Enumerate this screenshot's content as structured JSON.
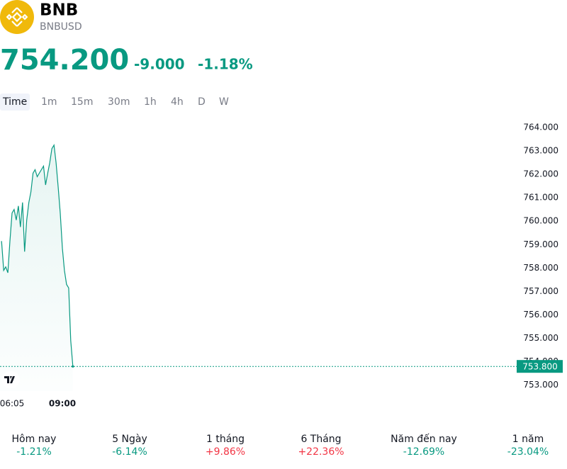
{
  "header": {
    "symbol": "BNB",
    "ticker": "BNBUSD",
    "price": "754.200",
    "change": "-9.000",
    "change_percent": "-1.18%"
  },
  "tabs": [
    "Time",
    "1m",
    "15m",
    "30m",
    "1h",
    "4h",
    "D",
    "W"
  ],
  "chart_data": {
    "type": "line",
    "color": "#089981",
    "categories": [
      null,
      null,
      null,
      null,
      null,
      "06:05",
      null,
      null,
      null,
      null,
      null,
      null,
      null,
      null,
      null,
      null,
      null,
      null,
      null,
      null,
      null,
      null,
      null,
      null,
      null,
      null,
      null,
      null,
      null,
      "09:00",
      null,
      null,
      null,
      null,
      null
    ],
    "series": [
      {
        "values": [
          759.15,
          757.9,
          758.05,
          757.8,
          759.15,
          760.35,
          760.5,
          760.05,
          760.65,
          759.75,
          760.8,
          758.7,
          760.05,
          760.8,
          761.25,
          762.05,
          762.2,
          761.9,
          762.05,
          762.2,
          762.35,
          761.55,
          762.05,
          762.5,
          763.1,
          763.25,
          762.5,
          761.45,
          760.35,
          758.85,
          757.9,
          757.3,
          757.15,
          754.9,
          753.8
        ]
      }
    ],
    "ylim": [
      752.45,
      764.55
    ],
    "yticks": [
      {
        "value": 753,
        "label": "753.000"
      },
      {
        "value": 754,
        "label": "754.000"
      },
      {
        "value": 755,
        "label": "755.000"
      },
      {
        "value": 756,
        "label": "756.000"
      },
      {
        "value": 757,
        "label": "757.000"
      },
      {
        "value": 758,
        "label": "758.000"
      },
      {
        "value": 759,
        "label": "759.000"
      },
      {
        "value": 760,
        "label": "760.000"
      },
      {
        "value": 761,
        "label": "761.000"
      },
      {
        "value": 762,
        "label": "762.000"
      },
      {
        "value": 763,
        "label": "763.000"
      },
      {
        "value": 764,
        "label": "764.000"
      }
    ],
    "price_line": {
      "value": 753.8,
      "label": "753.800"
    }
  },
  "performance": [
    {
      "label": "Hôm nay",
      "value": "-1.21%"
    },
    {
      "label": "5 Ngày",
      "value": "-6.14%"
    },
    {
      "label": "1 tháng",
      "value": "+9.86%"
    },
    {
      "label": "6 Tháng",
      "value": "+22.36%"
    },
    {
      "label": "Năm đến nay",
      "value": "-12.69%"
    },
    {
      "label": "1 năm",
      "value": "-23.04%"
    }
  ]
}
